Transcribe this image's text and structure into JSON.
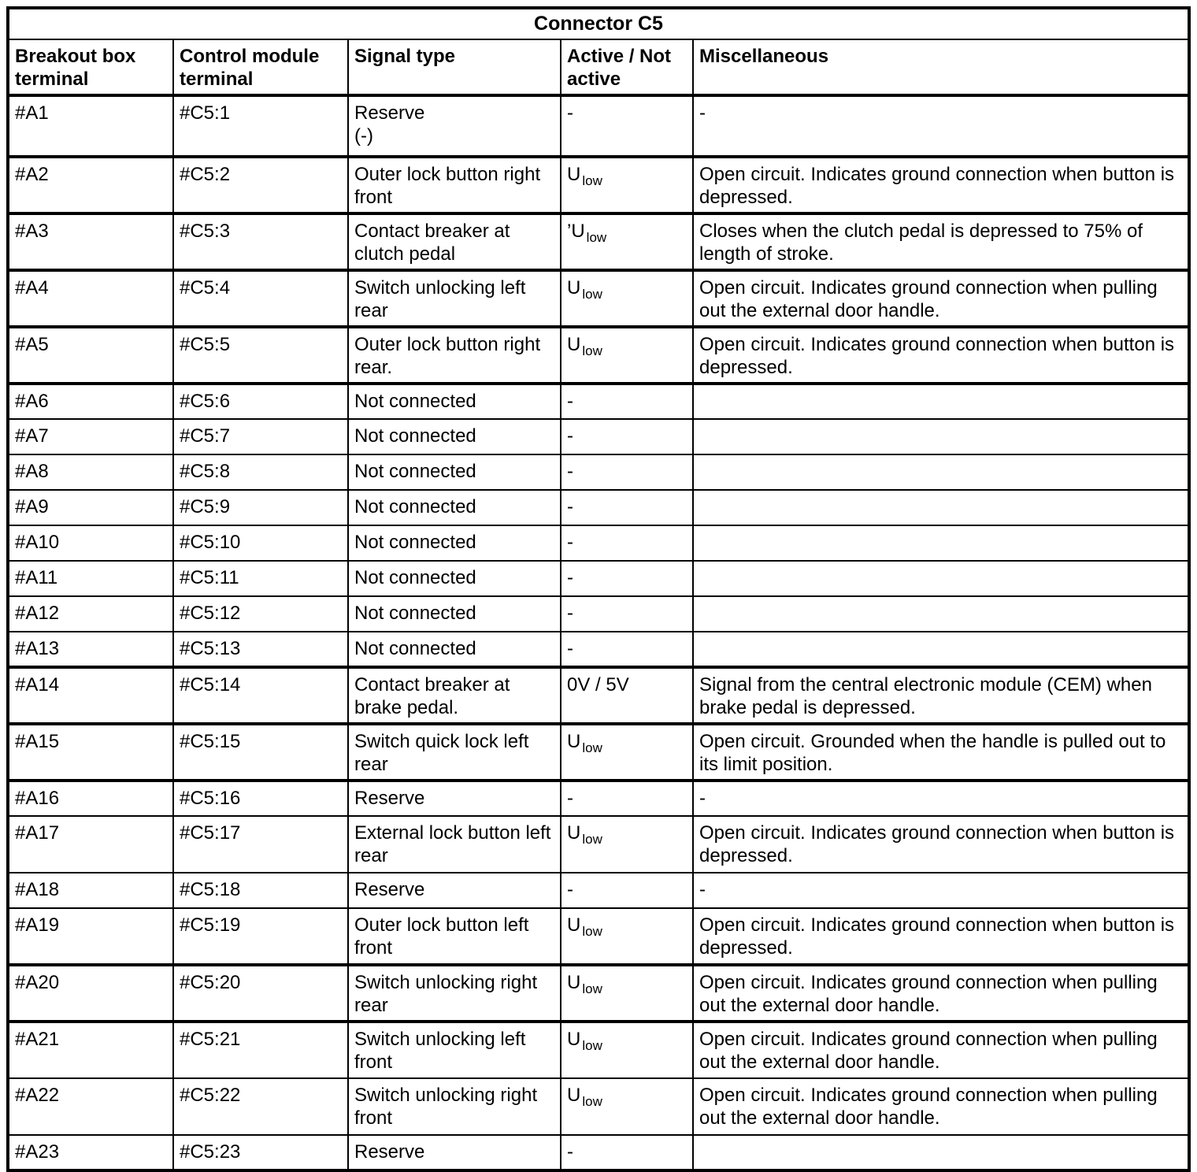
{
  "table": {
    "title": "Connector C5",
    "columns": [
      "Breakout box terminal",
      "Control module terminal",
      "Signal type",
      "Active / Not active",
      "Miscellaneous"
    ],
    "rows": [
      {
        "breakout": "#A1",
        "module": "#C5:1",
        "signal": "Reserve\n(-)",
        "active": "-",
        "misc": "-"
      },
      {
        "breakout": "#A2",
        "module": "#C5:2",
        "signal": "Outer lock button right front",
        "active": "U",
        "active_sub": "low",
        "misc": "Open circuit. Indicates ground connection when button is depressed."
      },
      {
        "breakout": "#A3",
        "module": "#C5:3",
        "signal": "Contact breaker at clutch pedal",
        "active": "’U",
        "active_sub": "low",
        "misc": "Closes when the clutch pedal is depressed to 75% of length of stroke."
      },
      {
        "breakout": "#A4",
        "module": "#C5:4",
        "signal": "Switch unlocking left rear",
        "active": "U",
        "active_sub": "low",
        "misc": "Open circuit. Indicates ground connection when pulling out the external door handle."
      },
      {
        "breakout": "#A5",
        "module": "#C5:5",
        "signal": "Outer lock button right rear.",
        "active": "U",
        "active_sub": "low",
        "misc": "Open circuit. Indicates ground connection when button is depressed."
      },
      {
        "breakout": "#A6",
        "module": "#C5:6",
        "signal": "Not connected",
        "active": "-",
        "misc": ""
      },
      {
        "breakout": "#A7",
        "module": "#C5:7",
        "signal": "Not connected",
        "active": "-",
        "misc": ""
      },
      {
        "breakout": "#A8",
        "module": "#C5:8",
        "signal": "Not connected",
        "active": "-",
        "misc": ""
      },
      {
        "breakout": "#A9",
        "module": "#C5:9",
        "signal": "Not connected",
        "active": "-",
        "misc": ""
      },
      {
        "breakout": "#A10",
        "module": "#C5:10",
        "signal": "Not connected",
        "active": "-",
        "misc": ""
      },
      {
        "breakout": "#A11",
        "module": "#C5:11",
        "signal": "Not connected",
        "active": "-",
        "misc": ""
      },
      {
        "breakout": "#A12",
        "module": "#C5:12",
        "signal": "Not connected",
        "active": "-",
        "misc": ""
      },
      {
        "breakout": "#A13",
        "module": "#C5:13",
        "signal": "Not connected",
        "active": "-",
        "misc": ""
      },
      {
        "breakout": "#A14",
        "module": "#C5:14",
        "signal": "Contact breaker at brake pedal.",
        "active": "0V / 5V",
        "misc": "Signal from the central electronic module (CEM) when brake pedal is depressed."
      },
      {
        "breakout": "#A15",
        "module": "#C5:15",
        "signal": "Switch quick lock left rear",
        "active": "U",
        "active_sub": "low",
        "misc": "Open circuit. Grounded when the handle is pulled out to its limit position."
      },
      {
        "breakout": "#A16",
        "module": "#C5:16",
        "signal": "Reserve",
        "active": "-",
        "misc": "-"
      },
      {
        "breakout": "#A17",
        "module": "#C5:17",
        "signal": "External lock button left rear",
        "active": "U",
        "active_sub": "low",
        "misc": "Open circuit. Indicates ground connection when button is depressed."
      },
      {
        "breakout": "#A18",
        "module": "#C5:18",
        "signal": "Reserve",
        "active": "-",
        "misc": "-"
      },
      {
        "breakout": "#A19",
        "module": "#C5:19",
        "signal": "Outer lock button left front",
        "active": "U",
        "active_sub": "low",
        "misc": "Open circuit. Indicates ground connection when button is depressed."
      },
      {
        "breakout": "#A20",
        "module": "#C5:20",
        "signal": "Switch unlocking right rear",
        "active": "U",
        "active_sub": "low",
        "misc": "Open circuit. Indicates ground connection when pulling out the external door handle."
      },
      {
        "breakout": "#A21",
        "module": "#C5:21",
        "signal": "Switch unlocking left front",
        "active": "U",
        "active_sub": "low",
        "misc": "Open circuit. Indicates ground connection when pulling out the external door handle."
      },
      {
        "breakout": "#A22",
        "module": "#C5:22",
        "signal": "Switch unlocking right front",
        "active": "U",
        "active_sub": "low",
        "misc": "Open circuit. Indicates ground connection when pulling out the external door handle."
      },
      {
        "breakout": "#A23",
        "module": "#C5:23",
        "signal": "Reserve",
        "active": "-",
        "misc": ""
      }
    ]
  }
}
